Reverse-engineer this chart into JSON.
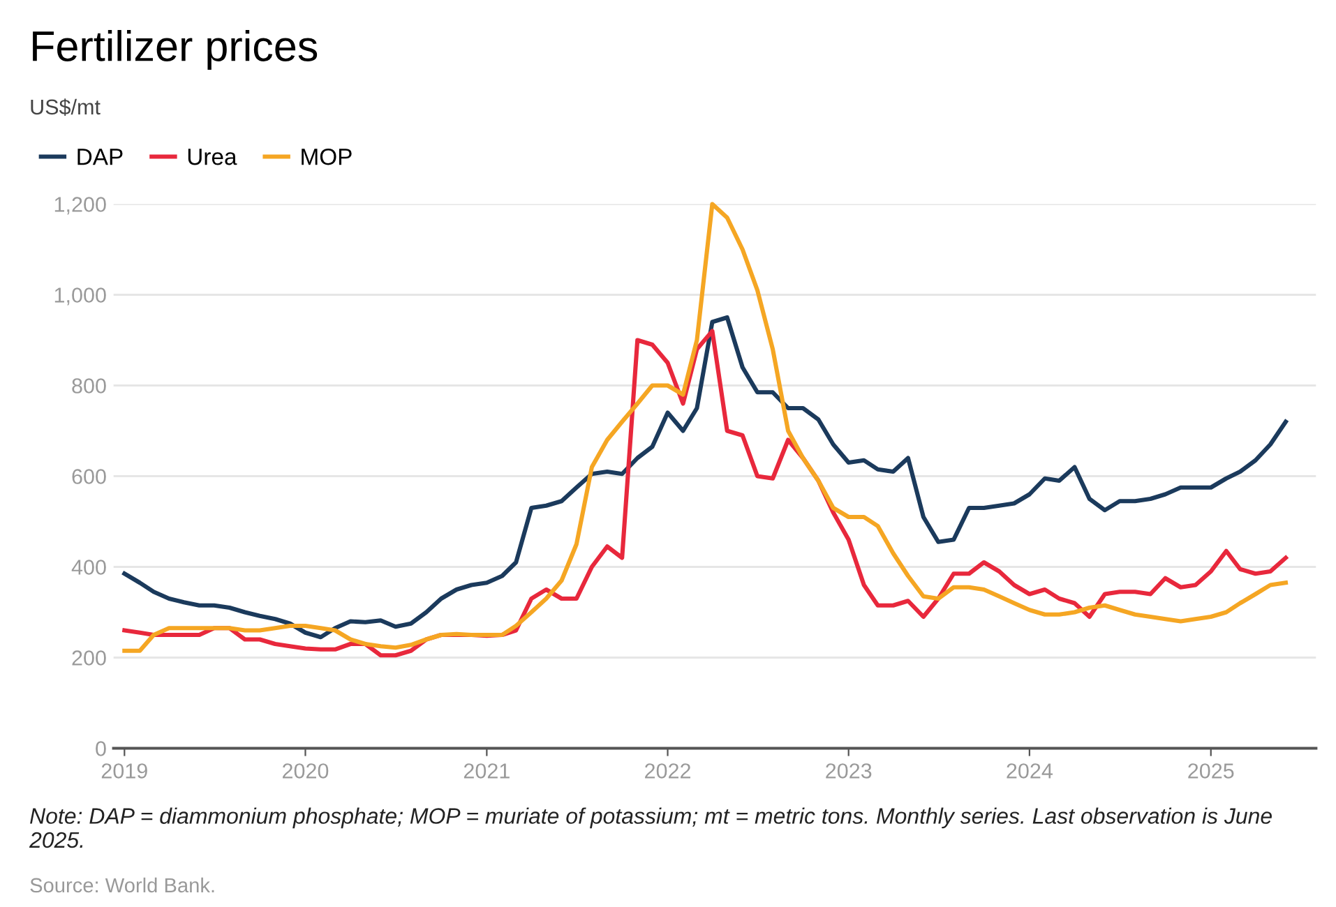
{
  "chart_data": {
    "type": "line",
    "title": "Fertilizer prices",
    "ylabel": "US$/mt",
    "x": [
      "2019-01",
      "2019-02",
      "2019-03",
      "2019-04",
      "2019-05",
      "2019-06",
      "2019-07",
      "2019-08",
      "2019-09",
      "2019-10",
      "2019-11",
      "2019-12",
      "2020-01",
      "2020-02",
      "2020-03",
      "2020-04",
      "2020-05",
      "2020-06",
      "2020-07",
      "2020-08",
      "2020-09",
      "2020-10",
      "2020-11",
      "2020-12",
      "2021-01",
      "2021-02",
      "2021-03",
      "2021-04",
      "2021-05",
      "2021-06",
      "2021-07",
      "2021-08",
      "2021-09",
      "2021-10",
      "2021-11",
      "2021-12",
      "2022-01",
      "2022-02",
      "2022-03",
      "2022-04",
      "2022-05",
      "2022-06",
      "2022-07",
      "2022-08",
      "2022-09",
      "2022-10",
      "2022-11",
      "2022-12",
      "2023-01",
      "2023-02",
      "2023-03",
      "2023-04",
      "2023-05",
      "2023-06",
      "2023-07",
      "2023-08",
      "2023-09",
      "2023-10",
      "2023-11",
      "2023-12",
      "2024-01",
      "2024-02",
      "2024-03",
      "2024-04",
      "2024-05",
      "2024-06",
      "2024-07",
      "2024-08",
      "2024-09",
      "2024-10",
      "2024-11",
      "2024-12",
      "2025-01",
      "2025-02",
      "2025-03",
      "2025-04",
      "2025-05",
      "2025-06"
    ],
    "series": [
      {
        "name": "DAP",
        "color": "#1b3a5c",
        "values": [
          385,
          365,
          345,
          330,
          322,
          315,
          315,
          310,
          300,
          292,
          285,
          275,
          255,
          245,
          265,
          280,
          278,
          282,
          268,
          275,
          300,
          330,
          350,
          360,
          365,
          380,
          410,
          530,
          535,
          545,
          575,
          605,
          610,
          605,
          640,
          665,
          740,
          700,
          750,
          940,
          950,
          840,
          785,
          785,
          750,
          750,
          725,
          670,
          630,
          635,
          615,
          610,
          640,
          510,
          455,
          460,
          530,
          530,
          535,
          540,
          560,
          595,
          590,
          620,
          550,
          525,
          545,
          545,
          550,
          560,
          575,
          575,
          575,
          595,
          610,
          635,
          670,
          720
        ]
      },
      {
        "name": "Urea",
        "color": "#e8283c",
        "values": [
          260,
          255,
          250,
          250,
          250,
          250,
          265,
          265,
          240,
          240,
          230,
          225,
          220,
          218,
          218,
          230,
          230,
          205,
          205,
          215,
          240,
          250,
          250,
          250,
          248,
          250,
          260,
          330,
          350,
          330,
          330,
          400,
          445,
          420,
          900,
          890,
          850,
          760,
          880,
          920,
          700,
          690,
          600,
          595,
          680,
          640,
          590,
          520,
          460,
          360,
          315,
          315,
          325,
          290,
          330,
          385,
          385,
          410,
          390,
          360,
          340,
          350,
          330,
          320,
          290,
          340,
          345,
          345,
          340,
          375,
          355,
          360,
          390,
          435,
          395,
          385,
          390,
          420
        ]
      },
      {
        "name": "MOP",
        "color": "#f5a623",
        "values": [
          215,
          215,
          250,
          265,
          265,
          265,
          265,
          265,
          260,
          260,
          265,
          270,
          270,
          265,
          260,
          240,
          230,
          225,
          222,
          228,
          240,
          250,
          252,
          250,
          250,
          250,
          270,
          300,
          330,
          370,
          450,
          620,
          680,
          720,
          760,
          800,
          800,
          780,
          900,
          1200,
          1170,
          1100,
          1010,
          880,
          700,
          640,
          590,
          530,
          510,
          510,
          490,
          430,
          380,
          335,
          330,
          355,
          355,
          350,
          335,
          320,
          305,
          295,
          295,
          300,
          310,
          315,
          305,
          295,
          290,
          285,
          280,
          285,
          290,
          300,
          320,
          340,
          360,
          365
        ]
      }
    ],
    "xlim": [
      "2018-12-10",
      "2025-08-01"
    ],
    "xticks": [
      "2019",
      "2020",
      "2021",
      "2022",
      "2023",
      "2024",
      "2025"
    ],
    "ylim": [
      0,
      1200
    ],
    "yticks": [
      0,
      200,
      400,
      600,
      800,
      {
        "value": 1000,
        "label": "1,000"
      },
      {
        "value": 1200,
        "label": "1,200"
      }
    ],
    "grid": "y",
    "legend": "top left",
    "line_style": "solid",
    "marker": "none",
    "annotations": [
      "Note: DAP = diammonium phosphate; MOP = muriate of potassium; mt = metric tons. Monthly series. Last observation is June 2025.",
      "Source: World Bank."
    ]
  }
}
